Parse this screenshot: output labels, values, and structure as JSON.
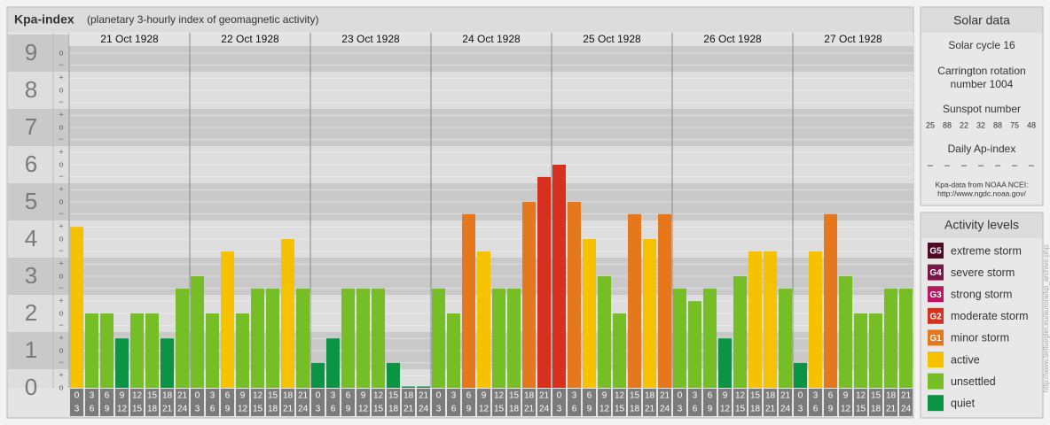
{
  "chart_data": {
    "type": "bar",
    "title": "Kpa-index",
    "subtitle": "(planetary 3-hourly index of geomagnetic activity)",
    "ylim": [
      0,
      9.5
    ],
    "yticks": [
      0,
      1,
      2,
      3,
      4,
      5,
      6,
      7,
      8,
      9
    ],
    "minor_yticks": [
      {
        "value": 0,
        "label": "o"
      },
      {
        "value": 0.33,
        "label": "+"
      },
      {
        "value": 0.67,
        "label": "−"
      },
      {
        "value": 1,
        "label": "o"
      },
      {
        "value": 1.33,
        "label": "+"
      },
      {
        "value": 1.67,
        "label": "−"
      },
      {
        "value": 2,
        "label": "o"
      },
      {
        "value": 2.33,
        "label": "+"
      },
      {
        "value": 2.67,
        "label": "−"
      },
      {
        "value": 3,
        "label": "o"
      },
      {
        "value": 3.33,
        "label": "+"
      },
      {
        "value": 3.67,
        "label": "−"
      },
      {
        "value": 4,
        "label": "o"
      },
      {
        "value": 4.33,
        "label": "+"
      },
      {
        "value": 4.67,
        "label": "−"
      },
      {
        "value": 5,
        "label": "o"
      },
      {
        "value": 5.33,
        "label": "+"
      },
      {
        "value": 5.67,
        "label": "−"
      },
      {
        "value": 6,
        "label": "o"
      },
      {
        "value": 6.33,
        "label": "+"
      },
      {
        "value": 6.67,
        "label": "−"
      },
      {
        "value": 7,
        "label": "o"
      },
      {
        "value": 7.33,
        "label": "+"
      },
      {
        "value": 7.67,
        "label": "−"
      },
      {
        "value": 8,
        "label": "o"
      },
      {
        "value": 8.33,
        "label": "+"
      },
      {
        "value": 8.67,
        "label": "−"
      },
      {
        "value": 9,
        "label": "o"
      }
    ],
    "grid": true,
    "hours": [
      0,
      3,
      6,
      9,
      12,
      15,
      18,
      21,
      24
    ],
    "days": [
      {
        "date": "21 Oct 1928",
        "values": [
          4.33,
          2,
          2,
          1.33,
          2,
          2,
          1.33,
          2.67
        ],
        "colors": [
          "#f6c200",
          "#76be26",
          "#76be26",
          "#0a9444",
          "#76be26",
          "#76be26",
          "#0a9444",
          "#76be26"
        ]
      },
      {
        "date": "22 Oct 1928",
        "values": [
          3,
          2,
          3.67,
          2,
          2.67,
          2.67,
          4,
          2.67
        ],
        "colors": [
          "#76be26",
          "#76be26",
          "#f6c200",
          "#76be26",
          "#76be26",
          "#76be26",
          "#f6c200",
          "#76be26"
        ]
      },
      {
        "date": "23 Oct 1928",
        "values": [
          0.67,
          1.33,
          2.67,
          2.67,
          2.67,
          0.67,
          0,
          0
        ],
        "colors": [
          "#0a9444",
          "#0a9444",
          "#76be26",
          "#76be26",
          "#76be26",
          "#0a9444",
          "#0a9444",
          "#0a9444"
        ]
      },
      {
        "date": "24 Oct 1928",
        "values": [
          2.67,
          2,
          4.67,
          3.67,
          2.67,
          2.67,
          5,
          5.67
        ],
        "colors": [
          "#76be26",
          "#76be26",
          "#e5781c",
          "#f6c200",
          "#76be26",
          "#76be26",
          "#e5781c",
          "#d6301e"
        ]
      },
      {
        "date": "25 Oct 1928",
        "values": [
          6,
          5,
          4,
          3,
          2,
          4.67,
          4,
          4.67
        ],
        "colors": [
          "#d6301e",
          "#e5781c",
          "#f6c200",
          "#76be26",
          "#76be26",
          "#e5781c",
          "#f6c200",
          "#e5781c"
        ]
      },
      {
        "date": "26 Oct 1928",
        "values": [
          2.67,
          2.33,
          2.67,
          1.33,
          3,
          3.67,
          3.67,
          2.67
        ],
        "colors": [
          "#76be26",
          "#76be26",
          "#76be26",
          "#0a9444",
          "#76be26",
          "#f6c200",
          "#f6c200",
          "#76be26"
        ]
      },
      {
        "date": "27 Oct 1928",
        "values": [
          0.67,
          3.67,
          4.67,
          3,
          2,
          2,
          2.67,
          2.67
        ],
        "colors": [
          "#0a9444",
          "#f6c200",
          "#e5781c",
          "#76be26",
          "#76be26",
          "#76be26",
          "#76be26",
          "#76be26"
        ]
      }
    ]
  },
  "solar_data": {
    "title": "Solar data",
    "solar_cycle": "Solar cycle 16",
    "carrington": [
      "Carrington rotation",
      "number 1004"
    ],
    "sunspot_title": "Sunspot number",
    "sunspot_numbers": [
      25,
      88,
      22,
      32,
      88,
      75,
      48
    ],
    "ap_title": "Daily Ap-index",
    "ap_values": [
      "–",
      "–",
      "–",
      "–",
      "–",
      "–",
      "–"
    ],
    "source": [
      "Kpa-data from NOAA NCEI:",
      "http://www.ngdc.noaa.gov/"
    ]
  },
  "activity_levels": {
    "title": "Activity levels",
    "items": [
      {
        "badge": "G5",
        "name": "extreme storm",
        "color": "#4d0a26"
      },
      {
        "badge": "G4",
        "name": "severe storm",
        "color": "#7a1548"
      },
      {
        "badge": "G3",
        "name": "strong storm",
        "color": "#b8165e"
      },
      {
        "badge": "G2",
        "name": "moderate storm",
        "color": "#d6301e"
      },
      {
        "badge": "G1",
        "name": "minor storm",
        "color": "#e5781c"
      },
      {
        "name": "active",
        "color": "#f6c200"
      },
      {
        "name": "unsettled",
        "color": "#76be26"
      },
      {
        "name": "quiet",
        "color": "#0a9444"
      }
    ]
  },
  "credit": "http://www.tiefluegler.eu/aurora/kp_archive.php"
}
